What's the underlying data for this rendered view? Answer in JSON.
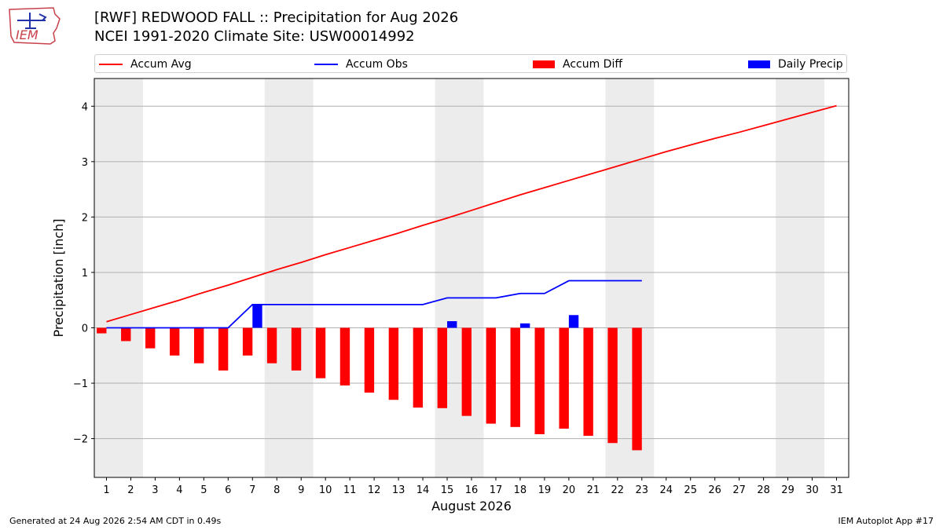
{
  "logo": {
    "text": "IEM"
  },
  "title_line1": "[RWF] REDWOOD FALL :: Precipitation for Aug 2026",
  "title_line2": "NCEI 1991-2020 Climate Site: USW00014992",
  "legend": {
    "placement": "top",
    "items": [
      {
        "label": "Accum Avg",
        "kind": "line",
        "color": "#ff0000"
      },
      {
        "label": "Accum Obs",
        "kind": "line",
        "color": "#0000ff"
      },
      {
        "label": "Accum Diff",
        "kind": "bar",
        "color": "#ff0000"
      },
      {
        "label": "Daily Precip",
        "kind": "bar",
        "color": "#0000ff"
      }
    ]
  },
  "footer": {
    "left": "Generated at 24 Aug 2026 2:54 AM CDT in 0.49s",
    "right": "IEM Autoplot App #17"
  },
  "chart_data": {
    "type": "bar",
    "xlabel": "August 2026",
    "ylabel": "Precipitation [inch]",
    "x": [
      1,
      2,
      3,
      4,
      5,
      6,
      7,
      8,
      9,
      10,
      11,
      12,
      13,
      14,
      15,
      16,
      17,
      18,
      19,
      20,
      21,
      22,
      23,
      24,
      25,
      26,
      27,
      28,
      29,
      30,
      31
    ],
    "xlim": [
      0.5,
      31.5
    ],
    "ylim": [
      -2.7,
      4.5
    ],
    "yticks": [
      -2,
      -1,
      0,
      1,
      2,
      3,
      4
    ],
    "grid": true,
    "weekend_shading": [
      [
        0.5,
        2.5
      ],
      [
        7.5,
        9.5
      ],
      [
        14.5,
        16.5
      ],
      [
        21.5,
        23.5
      ],
      [
        28.5,
        30.5
      ]
    ],
    "series": [
      {
        "name": "Accum Avg",
        "kind": "line",
        "color": "#ff0000",
        "values": [
          0.11,
          0.24,
          0.37,
          0.5,
          0.64,
          0.77,
          0.91,
          1.05,
          1.18,
          1.32,
          1.45,
          1.58,
          1.71,
          1.85,
          1.98,
          2.12,
          2.26,
          2.4,
          2.53,
          2.66,
          2.79,
          2.92,
          3.05,
          3.18,
          3.3,
          3.42,
          3.53,
          3.65,
          3.77,
          3.89,
          4.01
        ]
      },
      {
        "name": "Accum Obs",
        "kind": "line",
        "color": "#0000ff",
        "values": [
          0.0,
          0.0,
          0.0,
          0.0,
          0.0,
          0.0,
          0.42,
          0.42,
          0.42,
          0.42,
          0.42,
          0.42,
          0.42,
          0.42,
          0.54,
          0.54,
          0.54,
          0.62,
          0.62,
          0.85,
          0.85,
          0.85,
          0.85,
          null,
          null,
          null,
          null,
          null,
          null,
          null,
          null
        ]
      },
      {
        "name": "Accum Diff",
        "kind": "bar",
        "color": "#ff0000",
        "values": [
          -0.1,
          -0.24,
          -0.37,
          -0.5,
          -0.64,
          -0.77,
          -0.5,
          -0.64,
          -0.77,
          -0.91,
          -1.04,
          -1.17,
          -1.3,
          -1.44,
          -1.45,
          -1.59,
          -1.73,
          -1.79,
          -1.92,
          -1.82,
          -1.95,
          -2.08,
          -2.21,
          null,
          null,
          null,
          null,
          null,
          null,
          null,
          null
        ]
      },
      {
        "name": "Daily Precip",
        "kind": "bar",
        "color": "#0000ff",
        "values": [
          0,
          0,
          0,
          0,
          0,
          0,
          0.42,
          0,
          0,
          0,
          0,
          0,
          0,
          0,
          0.12,
          0,
          0,
          0.08,
          0,
          0.23,
          0,
          0,
          0,
          null,
          null,
          null,
          null,
          null,
          null,
          null,
          null
        ]
      }
    ]
  }
}
